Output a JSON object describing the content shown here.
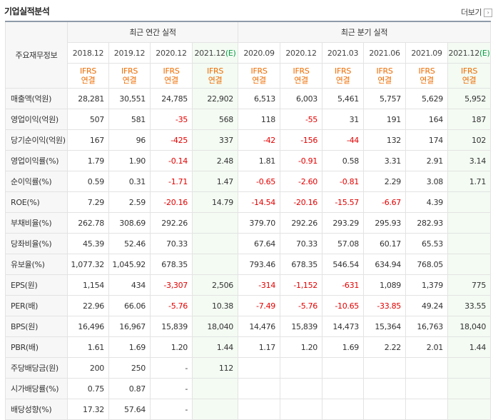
{
  "title": "기업실적분석",
  "more_label": "더보기",
  "header": {
    "label": "주요재무정보",
    "annual_label": "최근 연간 실적",
    "quarter_label": "최근 분기 실적",
    "ifrs_top": "IFRS",
    "ifrs_bottom": "연결",
    "periods": [
      "2018.12",
      "2019.12",
      "2020.12",
      "2021.12",
      "2020.09",
      "2020.12",
      "2021.03",
      "2021.06",
      "2021.09",
      "2021.12"
    ],
    "estimate_suffix": "(E)"
  },
  "rows": [
    {
      "label": "매출액(억원)",
      "values": [
        "28,281",
        "30,551",
        "24,785",
        "22,902",
        "6,513",
        "6,003",
        "5,461",
        "5,757",
        "5,629",
        "5,952"
      ]
    },
    {
      "label": "영업이익(억원)",
      "values": [
        "507",
        "581",
        "-35",
        "568",
        "118",
        "-55",
        "31",
        "191",
        "164",
        "187"
      ]
    },
    {
      "label": "당기순이익(억원)",
      "values": [
        "167",
        "96",
        "-425",
        "337",
        "-42",
        "-156",
        "-44",
        "132",
        "174",
        "102"
      ]
    },
    {
      "label": "영업이익률(%)",
      "values": [
        "1.79",
        "1.90",
        "-0.14",
        "2.48",
        "1.81",
        "-0.91",
        "0.58",
        "3.31",
        "2.91",
        "3.14"
      ]
    },
    {
      "label": "순이익률(%)",
      "values": [
        "0.59",
        "0.31",
        "-1.71",
        "1.47",
        "-0.65",
        "-2.60",
        "-0.81",
        "2.29",
        "3.08",
        "1.71"
      ]
    },
    {
      "label": "ROE(%)",
      "values": [
        "7.29",
        "2.59",
        "-20.16",
        "14.79",
        "-14.54",
        "-20.16",
        "-15.57",
        "-6.67",
        "4.39",
        ""
      ]
    },
    {
      "label": "부채비율(%)",
      "values": [
        "262.78",
        "308.69",
        "292.26",
        "",
        "379.70",
        "292.26",
        "293.29",
        "295.93",
        "282.93",
        ""
      ]
    },
    {
      "label": "당좌비율(%)",
      "values": [
        "45.39",
        "52.46",
        "70.33",
        "",
        "67.64",
        "70.33",
        "57.08",
        "60.17",
        "65.53",
        ""
      ]
    },
    {
      "label": "유보율(%)",
      "values": [
        "1,077.32",
        "1,045.92",
        "678.35",
        "",
        "793.46",
        "678.35",
        "546.54",
        "634.94",
        "768.05",
        ""
      ]
    },
    {
      "label": "EPS(원)",
      "values": [
        "1,154",
        "434",
        "-3,307",
        "2,506",
        "-314",
        "-1,152",
        "-631",
        "1,089",
        "1,379",
        "775"
      ]
    },
    {
      "label": "PER(배)",
      "values": [
        "22.96",
        "66.06",
        "-5.76",
        "10.38",
        "-7.49",
        "-5.76",
        "-10.65",
        "-33.85",
        "49.24",
        "33.55"
      ]
    },
    {
      "label": "BPS(원)",
      "values": [
        "16,496",
        "16,967",
        "15,839",
        "18,040",
        "14,476",
        "15,839",
        "14,473",
        "15,364",
        "16,763",
        "18,040"
      ]
    },
    {
      "label": "PBR(배)",
      "values": [
        "1.61",
        "1.69",
        "1.20",
        "1.44",
        "1.17",
        "1.20",
        "1.69",
        "2.22",
        "2.01",
        "1.44"
      ]
    },
    {
      "label": "주당배당금(원)",
      "values": [
        "200",
        "250",
        "-",
        "112",
        "",
        "",
        "",
        "",
        "",
        ""
      ]
    },
    {
      "label": "시가배당률(%)",
      "values": [
        "0.75",
        "0.87",
        "-",
        "",
        "",
        "",
        "",
        "",
        "",
        ""
      ]
    },
    {
      "label": "배당성향(%)",
      "values": [
        "17.32",
        "57.64",
        "-",
        "",
        "",
        "",
        "",
        "",
        "",
        ""
      ]
    }
  ],
  "colors": {
    "negative": "#e50000",
    "ifrs": "#ef6c00",
    "estimate_mark": "#0c9d47",
    "estimate_bg": "#f3fbf3"
  }
}
